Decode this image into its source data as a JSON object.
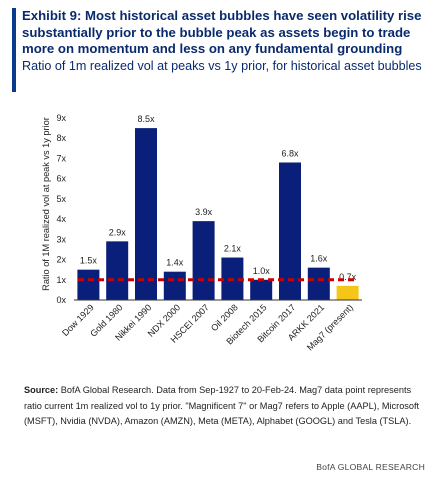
{
  "header": {
    "title": "Exhibit 9: Most historical asset bubbles have seen volatility rise substantially prior to the bubble peak as assets begin to trade more on momentum and less on any fundamental grounding",
    "subtitle": "Ratio of 1m realized vol at peaks vs 1y prior, for historical asset bubbles"
  },
  "chart_data": {
    "type": "bar",
    "title": "",
    "xlabel": "",
    "ylabel": "Ratio of 1M realized vol at peak vs 1y prior",
    "ylim": [
      0,
      9
    ],
    "yticks": [
      0,
      1,
      2,
      3,
      4,
      5,
      6,
      7,
      8,
      9
    ],
    "ytick_labels": [
      "0x",
      "1x",
      "2x",
      "3x",
      "4x",
      "5x",
      "6x",
      "7x",
      "8x",
      "9x"
    ],
    "categories": [
      "Dow 1929",
      "Gold 1980",
      "Nikkei 1990",
      "NDX 2000",
      "HSCEI 2007",
      "Oil 2008",
      "Biotech 2015",
      "Bitcoin 2017",
      "ARKK 2021",
      "Mag7 (present)"
    ],
    "values": [
      1.5,
      2.9,
      8.5,
      1.4,
      3.9,
      2.1,
      1.0,
      6.8,
      1.6,
      0.7
    ],
    "data_labels": [
      "1.5x",
      "2.9x",
      "8.5x",
      "1.4x",
      "3.9x",
      "2.1x",
      "1.0x",
      "6.8x",
      "1.6x",
      "0.7x"
    ],
    "reference_line": 1.0,
    "grid": false,
    "colors": {
      "bar": "#0a1f7a",
      "highlight": "#f5c518",
      "reference": "#cc0000",
      "axis": "#333333"
    },
    "highlight_index": 9
  },
  "footer": {
    "source_label": "Source:",
    "source_text": " BofA Global Research. Data from Sep-1927 to 20-Feb-24. Mag7 data point represents ratio current 1m realized vol to 1y prior. \"Magnificent 7\" or Mag7 refers to Apple (AAPL), Microsoft (MSFT), Nvidia (NVDA), Amazon (AMZN), Meta (META), Alphabet (GOOGL) and Tesla (TSLA).",
    "brand": "BofA GLOBAL RESEARCH"
  }
}
